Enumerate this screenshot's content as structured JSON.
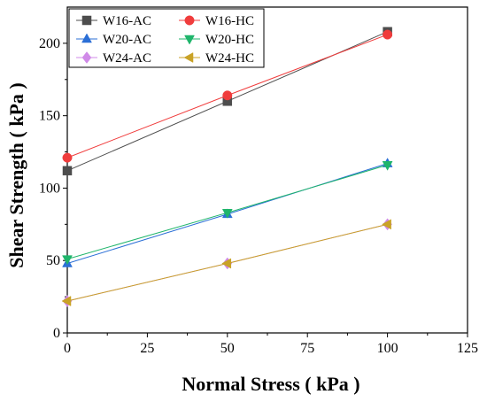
{
  "chart_data": {
    "type": "line",
    "xlabel": "Normal Stress ( kPa )",
    "ylabel": "Shear Strength ( kPa )",
    "xlim": [
      0,
      125
    ],
    "ylim": [
      0,
      225
    ],
    "x_ticks": [
      "0",
      "25",
      "50",
      "75",
      "100",
      "125"
    ],
    "y_ticks": [
      "0",
      "50",
      "100",
      "150",
      "200"
    ],
    "x": [
      0,
      50,
      100
    ],
    "grid": false,
    "legend_position": "top-left",
    "series": [
      {
        "name": "W16-AC",
        "values": [
          112,
          160,
          208
        ],
        "color": "#4d4d4d",
        "marker": "square"
      },
      {
        "name": "W16-HC",
        "values": [
          121,
          164,
          206
        ],
        "color": "#f03c3c",
        "marker": "circle"
      },
      {
        "name": "W20-AC",
        "values": [
          48,
          82,
          117
        ],
        "color": "#2b6fd6",
        "marker": "triangle-up"
      },
      {
        "name": "W20-HC",
        "values": [
          51,
          83,
          116
        ],
        "color": "#1fb56b",
        "marker": "triangle-down"
      },
      {
        "name": "W24-AC",
        "values": [
          22,
          48,
          75
        ],
        "color": "#d08ae8",
        "marker": "diamond"
      },
      {
        "name": "W24-HC",
        "values": [
          22,
          48,
          75
        ],
        "color": "#c9a227",
        "marker": "triangle-left"
      }
    ]
  }
}
